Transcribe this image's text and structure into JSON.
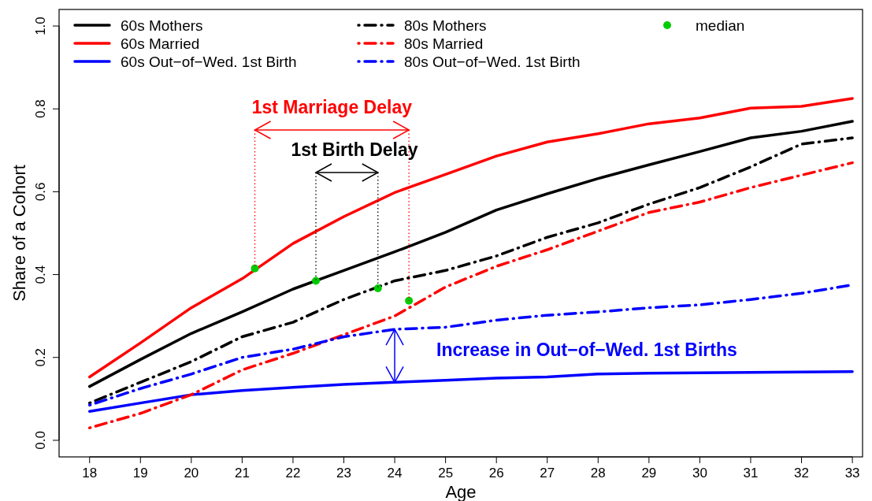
{
  "chart_data": {
    "type": "line",
    "xlabel": "Age",
    "ylabel": "Share of a Cohort",
    "x": [
      18,
      19,
      20,
      21,
      22,
      23,
      24,
      25,
      26,
      27,
      28,
      29,
      30,
      31,
      32,
      33
    ],
    "xlim": [
      17.4,
      33.2
    ],
    "xticks": [
      18,
      19,
      20,
      21,
      22,
      23,
      24,
      25,
      26,
      27,
      28,
      29,
      30,
      31,
      32,
      33
    ],
    "ylim": [
      -0.04,
      1.04
    ],
    "yticks": [
      {
        "value": 0,
        "label": "0.0"
      },
      {
        "value": 0.2,
        "label": "0.2"
      },
      {
        "value": 0.4,
        "label": "0.4"
      },
      {
        "value": 0.6,
        "label": "0.6"
      },
      {
        "value": 0.8,
        "label": "0.8"
      },
      {
        "value": 1,
        "label": "1.0"
      }
    ],
    "grid": false,
    "legend": "top",
    "series": [
      {
        "name": "60s Mothers",
        "color": "#000000",
        "line_style": "solid",
        "values": [
          0.13,
          0.195,
          0.258,
          0.31,
          0.365,
          0.41,
          0.455,
          0.502,
          0.556,
          0.595,
          0.632,
          0.665,
          0.697,
          0.73,
          0.746,
          0.77
        ]
      },
      {
        "name": "60s Married",
        "color": "#ff0000",
        "line_style": "solid",
        "values": [
          0.153,
          0.235,
          0.32,
          0.39,
          0.475,
          0.54,
          0.598,
          0.642,
          0.686,
          0.72,
          0.74,
          0.764,
          0.778,
          0.802,
          0.806,
          0.825
        ]
      },
      {
        "name": "60s Out−of−Wed. 1st Birth",
        "color": "#0000ff",
        "line_style": "solid",
        "values": [
          0.07,
          0.09,
          0.11,
          0.12,
          0.128,
          0.135,
          0.14,
          0.145,
          0.15,
          0.153,
          0.16,
          0.162,
          0.163,
          0.164,
          0.165,
          0.166
        ]
      },
      {
        "name": "80s Mothers",
        "color": "#000000",
        "line_style": "dashed",
        "values": [
          0.09,
          0.14,
          0.19,
          0.25,
          0.285,
          0.34,
          0.385,
          0.41,
          0.445,
          0.49,
          0.525,
          0.57,
          0.61,
          0.66,
          0.715,
          0.73
        ]
      },
      {
        "name": "80s Married",
        "color": "#ff0000",
        "line_style": "dashed",
        "values": [
          0.03,
          0.065,
          0.11,
          0.17,
          0.21,
          0.255,
          0.3,
          0.37,
          0.42,
          0.46,
          0.505,
          0.55,
          0.575,
          0.61,
          0.64,
          0.67
        ]
      },
      {
        "name": "80s Out−of−Wed. 1st Birth",
        "color": "#0000ff",
        "line_style": "dashed",
        "values": [
          0.085,
          0.125,
          0.16,
          0.2,
          0.22,
          0.25,
          0.268,
          0.273,
          0.29,
          0.302,
          0.31,
          0.32,
          0.327,
          0.34,
          0.355,
          0.375
        ]
      },
      {
        "name": "median",
        "type": "scatter",
        "marker": "circle",
        "color": "#00cc00",
        "x": [
          21.25,
          22.45,
          23.67,
          24.28
        ],
        "values": [
          0.415,
          0.385,
          0.367,
          0.337
        ]
      }
    ],
    "annotations": [
      {
        "text": "1st Marriage Delay",
        "x": 21.25,
        "y": 0.415
      },
      {
        "text": "1st Birth Delay",
        "x": 22.45,
        "y": 0.385
      },
      {
        "text": "Increase in Out−of−Wed. 1st Births",
        "x": 24,
        "y": 0.14
      }
    ]
  }
}
